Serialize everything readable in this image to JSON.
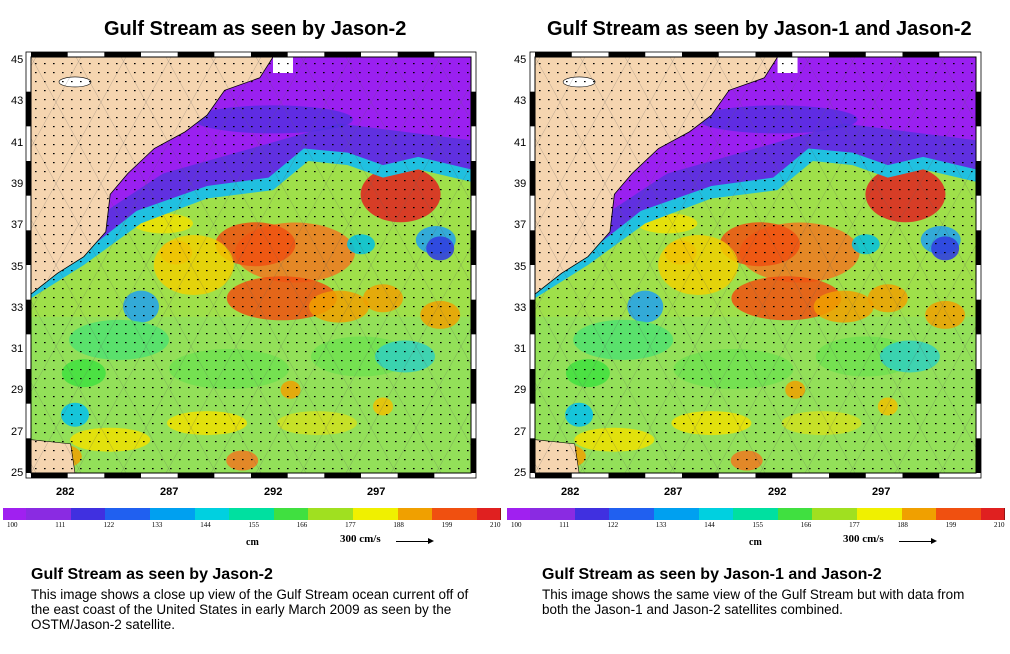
{
  "panels": [
    {
      "title": "Gulf Stream as seen by Jason-2",
      "caption_title": "Gulf Stream as seen by Jason-2",
      "caption_body": "This image shows a close up view of the Gulf Stream ocean current off of the east coast of the United States in early March 2009 as seen by the OSTM/Jason-2 satellite."
    },
    {
      "title": "Gulf Stream as seen by Jason-1 and Jason-2",
      "caption_title": "Gulf Stream as seen by Jason-1 and Jason-2",
      "caption_body": "This image shows the same view of the Gulf Stream but with data from both the Jason-1 and Jason-2 satellites combined."
    }
  ],
  "map": {
    "lat_labels": [
      "45",
      "43",
      "41",
      "39",
      "37",
      "35",
      "33",
      "31",
      "29",
      "27",
      "25"
    ],
    "lon_labels": [
      "282",
      "287",
      "292",
      "297"
    ],
    "land_color": "#f5d5b0",
    "frame_color": "#000000"
  },
  "colorbar": {
    "ticks": [
      "100",
      "111",
      "122",
      "133",
      "144",
      "155",
      "166",
      "177",
      "188",
      "199",
      "210"
    ],
    "unit": "cm",
    "scale_label": "300 cm/s",
    "colors": [
      "#a020f0",
      "#8a2be2",
      "#4030e0",
      "#2060f0",
      "#00a0f0",
      "#00d0e0",
      "#00e0a0",
      "#40e040",
      "#a0e020",
      "#f0f000",
      "#f0a000",
      "#f05010",
      "#e02020"
    ]
  }
}
